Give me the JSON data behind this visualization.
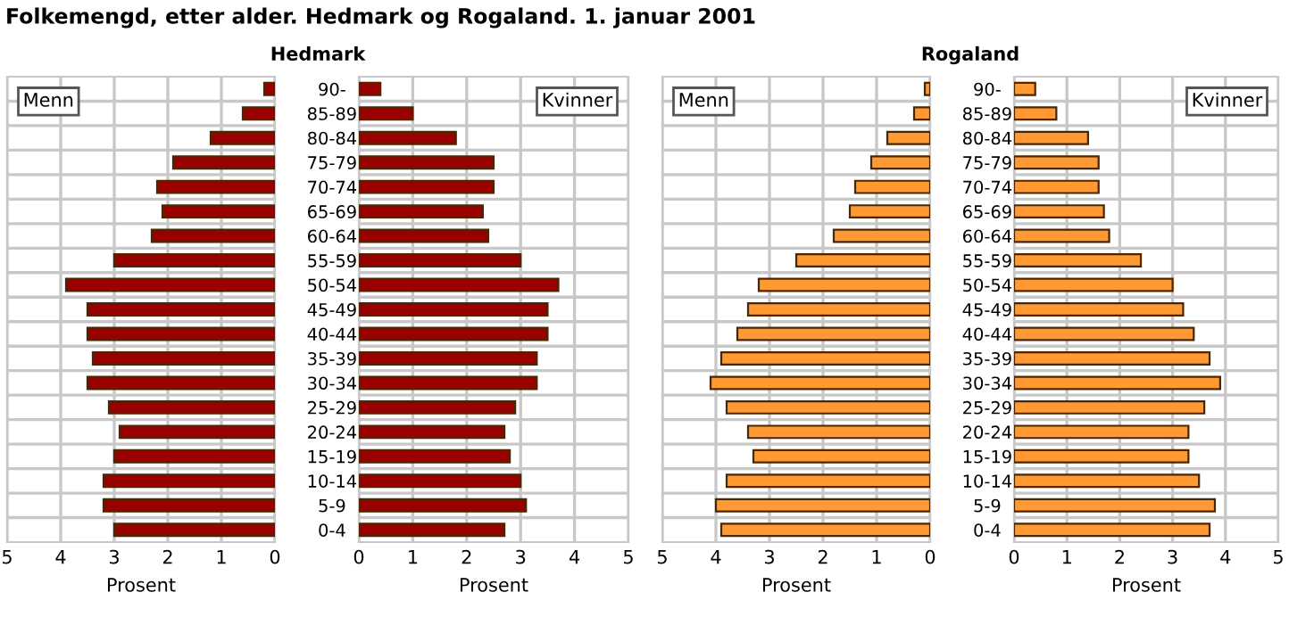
{
  "chart_data": [
    {
      "type": "bar",
      "orientation": "horizontal",
      "title": "Folkemengd, etter alder. Hedmark og Rogaland. 1. januar 2001",
      "subtitle": "Hedmark",
      "xlabel": "Prosent",
      "categories": [
        "90-",
        "85-89",
        "80-84",
        "75-79",
        "70-74",
        "65-69",
        "60-64",
        "55-59",
        "50-54",
        "45-49",
        "40-44",
        "35-39",
        "30-34",
        "25-29",
        "20-24",
        "15-19",
        "10-14",
        "5-9",
        "0-4"
      ],
      "series": [
        {
          "name": "Menn",
          "color": "#990000",
          "values": [
            0.2,
            0.6,
            1.2,
            1.9,
            2.2,
            2.1,
            2.3,
            3.0,
            3.9,
            3.5,
            3.5,
            3.4,
            3.5,
            3.1,
            2.9,
            3.0,
            3.2,
            3.2,
            3.0
          ]
        }
      ],
      "xlim": [
        5,
        0
      ],
      "xticks": [
        5,
        4,
        3,
        2,
        1,
        0
      ],
      "grid": true,
      "legend": "top left"
    },
    {
      "type": "bar",
      "orientation": "horizontal",
      "xlabel": "Prosent",
      "series": [
        {
          "name": "Kvinner",
          "color": "#990000",
          "values": [
            0.4,
            1.0,
            1.8,
            2.5,
            2.5,
            2.3,
            2.4,
            3.0,
            3.7,
            3.5,
            3.5,
            3.3,
            3.3,
            2.9,
            2.7,
            2.8,
            3.0,
            3.1,
            2.7
          ]
        }
      ],
      "xlim": [
        0,
        5
      ],
      "xticks": [
        0,
        1,
        2,
        3,
        4,
        5
      ],
      "grid": true,
      "legend": "top right",
      "tick_labels": "x"
    },
    {
      "type": "bar",
      "orientation": "horizontal",
      "subtitle": "Rogaland",
      "xlabel": "Prosent",
      "categories": [
        "90-",
        "85-89",
        "80-84",
        "75-79",
        "70-74",
        "65-69",
        "60-64",
        "55-59",
        "50-54",
        "45-49",
        "40-44",
        "35-39",
        "30-34",
        "25-29",
        "20-24",
        "15-19",
        "10-14",
        "5-9",
        "0-4"
      ],
      "series": [
        {
          "name": "Menn",
          "color": "#ff9933",
          "values": [
            0.1,
            0.3,
            0.8,
            1.1,
            1.4,
            1.5,
            1.8,
            2.5,
            3.2,
            3.4,
            3.6,
            3.9,
            4.1,
            3.8,
            3.4,
            3.3,
            3.8,
            4.0,
            3.9
          ]
        }
      ],
      "xlim": [
        5,
        0
      ],
      "xticks": [
        5,
        4,
        3,
        2,
        1,
        0
      ],
      "grid": true,
      "legend": "top left"
    },
    {
      "type": "bar",
      "orientation": "horizontal",
      "xlabel": "Prosent",
      "series": [
        {
          "name": "Kvinner",
          "color": "#ff9933",
          "values": [
            0.4,
            0.8,
            1.4,
            1.6,
            1.6,
            1.7,
            1.8,
            2.4,
            3.0,
            3.2,
            3.4,
            3.7,
            3.9,
            3.6,
            3.3,
            3.3,
            3.5,
            3.8,
            3.7
          ]
        }
      ],
      "xlim": [
        0,
        5
      ],
      "xticks": [
        0,
        1,
        2,
        3,
        4,
        5
      ],
      "grid": true,
      "legend": "top right",
      "tick_labels": "x"
    }
  ]
}
